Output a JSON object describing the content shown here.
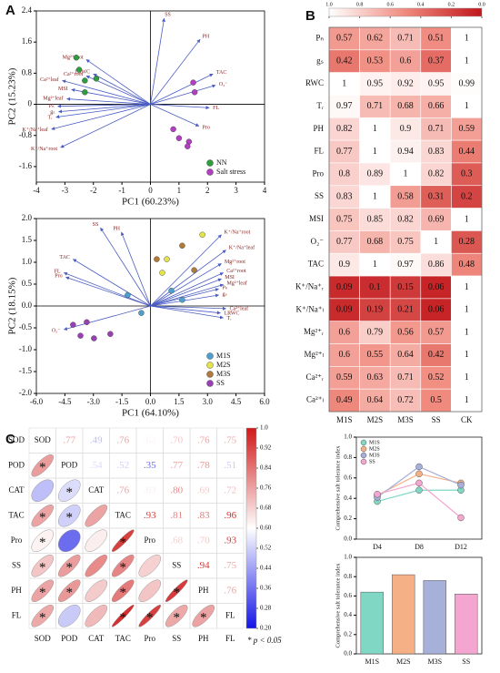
{
  "panel_labels": [
    "A",
    "B",
    "C"
  ],
  "chart_data": [
    {
      "type": "biplot",
      "xlabel": "PC1 (60.23%)",
      "ylabel": "PC2 (15.23%)",
      "xlim": [
        -4,
        4
      ],
      "ylim": [
        -2,
        2.4
      ],
      "xticks": [
        -4,
        -3,
        -2,
        -1,
        0,
        1,
        2,
        3,
        4
      ],
      "yticks": [
        2.4,
        1.6,
        0.8,
        0,
        -0.8,
        -1.6
      ],
      "legend": "lower right",
      "series": [
        {
          "name": "NN",
          "color": "#2e9e3e",
          "x": [
            -2.6,
            -2.5,
            -2.3,
            -1.9,
            -2.3
          ],
          "y": [
            1.2,
            0.89,
            0.61,
            0.66,
            0.31
          ]
        },
        {
          "name": "Salt stress",
          "color": "#b040c0",
          "x": [
            1.5,
            1.55,
            0.8,
            1.0,
            1.35,
            1.3
          ],
          "y": [
            0.56,
            0.31,
            -0.64,
            -0.87,
            -0.96,
            -1.08
          ]
        }
      ],
      "loadings": {
        "color": "#4a5cc4",
        "names": [
          "SS",
          "PH",
          "TAC",
          "O₂⁻",
          "FL",
          "Pro",
          "Mg²⁺root",
          "Ca²⁺root",
          "LRWC",
          "Ca²⁺leaf",
          "MSI",
          "Mg²⁺leaf",
          "Pₙ",
          "gₛ",
          "Tᵣ",
          "K⁺/Na⁺leaf",
          "K⁺/Na⁺root"
        ],
        "x": [
          0.48,
          1.74,
          2.19,
          2.28,
          2.06,
          1.7,
          -2.25,
          -2.25,
          -2.0,
          -3.09,
          -2.77,
          -2.93,
          -3.25,
          -3.22,
          -3.31,
          -3.47,
          -3.15
        ],
        "y": [
          2.21,
          1.67,
          0.78,
          0.49,
          -0.09,
          -0.56,
          1.15,
          0.73,
          0.78,
          0.61,
          0.38,
          0.14,
          -0.05,
          -0.19,
          -0.33,
          -0.64,
          -1.11
        ]
      }
    },
    {
      "type": "biplot",
      "xlabel": "PC1 (64.10%)",
      "ylabel": "PC2 (18.15%)",
      "xlim": [
        -6,
        6
      ],
      "ylim": [
        -2,
        2
      ],
      "xticks": [
        {
          "value": -6,
          "label": "-6.0"
        },
        -4.5,
        {
          "value": -3,
          "label": "-3.0"
        },
        -1.5,
        {
          "value": 0,
          "label": "0.0"
        },
        1.5,
        {
          "value": 3,
          "label": "3.0"
        },
        4.5,
        {
          "value": 6,
          "label": "6.0"
        }
      ],
      "yticks": [
        {
          "value": 2,
          "label": "2.0"
        },
        1.5,
        {
          "value": 1,
          "label": "1.0"
        },
        0.5,
        {
          "value": 0,
          "label": "0.0"
        },
        -0.5,
        {
          "value": -1,
          "label": "-1.0"
        },
        -1.5,
        {
          "value": -2,
          "label": "-2.0"
        }
      ],
      "legend": "lower right",
      "series": [
        {
          "name": "M1S",
          "color": "#4f9fcc",
          "x": [
            -0.48,
            1.1,
            -1.2,
            1.67
          ],
          "y": [
            -0.16,
            0.35,
            0.25,
            0.14
          ]
        },
        {
          "name": "M2S",
          "color": "#e4e44a",
          "x": [
            0.62,
            0.86,
            2.73
          ],
          "y": [
            0.76,
            1.07,
            1.63
          ]
        },
        {
          "name": "M3S",
          "color": "#b07a3a",
          "x": [
            0.33,
            1.67,
            2.3
          ],
          "y": [
            1.07,
            1.38,
            0.82
          ]
        },
        {
          "name": "SS",
          "color": "#9b3fb5",
          "x": [
            -4.07,
            -3.35,
            -2.97,
            -2.11,
            -3.68
          ],
          "y": [
            -0.43,
            -0.37,
            -0.74,
            -0.64,
            -0.68
          ]
        }
      ],
      "loadings": {
        "color": "#4a5cc4",
        "names": [
          "SS",
          "PH",
          "TAC",
          "FL",
          "Pro",
          "O₂⁻",
          "K⁺/Na⁺root",
          "K⁺/Na⁺leaf",
          "Mg²⁺root",
          "Ca²⁺root",
          "MSI",
          "Mg²⁺leaf",
          "Pₙ",
          "gₛ",
          "LRWC",
          "Ca²⁺leaf",
          "Tᵣ"
        ],
        "x": [
          -2.63,
          -1.53,
          -4.07,
          -4.55,
          -4.45,
          -4.55,
          3.73,
          3.97,
          3.73,
          3.83,
          3.73,
          3.83,
          3.59,
          3.59,
          3.68,
          3.97,
          3.83
        ],
        "y": [
          1.79,
          1.69,
          1.07,
          0.76,
          0.66,
          -0.54,
          1.63,
          1.28,
          0.97,
          0.76,
          0.62,
          0.49,
          0.39,
          0.25,
          -0.16,
          -0.06,
          -0.27
        ]
      }
    },
    {
      "type": "heatmap",
      "columns": [
        "M1S",
        "M2S",
        "M3S",
        "SS",
        "CK"
      ],
      "rows": [
        "Pₙ",
        "gₛ",
        "RWC",
        "Tᵣ",
        "PH",
        "FL",
        "Pro",
        "SS",
        "MSI",
        "O₂⁻",
        "TAC",
        "K⁺/Na⁺ᵣ",
        "K⁺/Na⁺ₗ",
        "Mg²⁺ᵣ",
        "Mg²⁺ₗ",
        "Ca²⁺ᵣ",
        "Ca²⁺ₗ"
      ],
      "values": [
        [
          0.57,
          0.62,
          0.71,
          0.51,
          1
        ],
        [
          0.42,
          0.53,
          0.6,
          0.37,
          1
        ],
        [
          1,
          0.95,
          0.92,
          0.95,
          0.99
        ],
        [
          0.97,
          0.71,
          0.68,
          0.66,
          1
        ],
        [
          0.82,
          1,
          0.9,
          0.71,
          0.59
        ],
        [
          0.77,
          1,
          0.94,
          0.83,
          0.44
        ],
        [
          0.8,
          0.89,
          1,
          0.82,
          0.3
        ],
        [
          0.83,
          1,
          0.58,
          0.31,
          0.2
        ],
        [
          0.75,
          0.85,
          0.82,
          0.69,
          1
        ],
        [
          0.77,
          0.68,
          0.75,
          1,
          0.28
        ],
        [
          0.9,
          1,
          0.97,
          0.86,
          0.48
        ],
        [
          0.09,
          0.1,
          0.15,
          0.06,
          1
        ],
        [
          0.09,
          0.19,
          0.21,
          0.06,
          1
        ],
        [
          0.6,
          0.79,
          0.56,
          0.57,
          1
        ],
        [
          0.6,
          0.55,
          0.64,
          0.42,
          1
        ],
        [
          0.59,
          0.63,
          0.71,
          0.52,
          1
        ],
        [
          0.49,
          0.64,
          0.72,
          0.5,
          1
        ]
      ],
      "clim": [
        1,
        0
      ],
      "cmap": [
        "#ffffff",
        "#f08a7e",
        "#c0161b"
      ],
      "cticks": [
        {
          "value": 1,
          "label": "1.0"
        },
        0.8,
        0.6,
        0.4,
        0.2,
        {
          "value": 0,
          "label": "0.0"
        }
      ]
    },
    {
      "type": "correlogram",
      "variables": [
        "SOD",
        "POD",
        "CAT",
        "TAC",
        "Pro",
        "SS",
        "PH",
        "FL"
      ],
      "values": [
        [
          null,
          0.77,
          0.49,
          0.76,
          0.62,
          0.7,
          0.76,
          0.75
        ],
        [
          null,
          null,
          0.54,
          0.52,
          0.35,
          0.77,
          0.78,
          0.51
        ],
        [
          null,
          null,
          null,
          0.76,
          0.63,
          0.8,
          0.69,
          0.72
        ],
        [
          null,
          null,
          null,
          null,
          0.93,
          0.81,
          0.83,
          0.96
        ],
        [
          null,
          null,
          null,
          null,
          null,
          0.68,
          0.7,
          0.93
        ],
        [
          null,
          null,
          null,
          null,
          null,
          null,
          0.94,
          0.75
        ],
        [
          null,
          null,
          null,
          null,
          null,
          null,
          null,
          0.76
        ],
        [
          null,
          null,
          null,
          null,
          null,
          null,
          null,
          null
        ]
      ],
      "value_labels": [
        [
          null,
          ".77",
          ".49",
          ".76",
          ".62",
          ".70",
          ".76",
          ".75"
        ],
        [
          null,
          null,
          ".54",
          ".52",
          ".35",
          ".77",
          ".78",
          ".51"
        ],
        [
          null,
          null,
          null,
          ".76",
          ".63",
          ".80",
          ".69",
          ".72"
        ],
        [
          null,
          null,
          null,
          null,
          ".93",
          ".81",
          ".83",
          ".96"
        ],
        [
          null,
          null,
          null,
          null,
          null,
          ".68",
          ".70",
          ".93"
        ],
        [
          null,
          null,
          null,
          null,
          null,
          null,
          ".94",
          ".75"
        ],
        [
          null,
          null,
          null,
          null,
          null,
          null,
          null,
          ".76"
        ],
        [
          null,
          null,
          null,
          null,
          null,
          null,
          null,
          null
        ]
      ],
      "significance": [
        [
          null,
          null,
          null,
          null,
          null,
          null,
          null,
          null
        ],
        [
          "*",
          null,
          null,
          null,
          null,
          null,
          null,
          null
        ],
        [
          null,
          "*",
          null,
          null,
          null,
          null,
          null,
          null
        ],
        [
          "*",
          "*",
          null,
          null,
          null,
          null,
          null,
          null
        ],
        [
          "*",
          null,
          null,
          "*",
          null,
          null,
          null,
          null
        ],
        [
          "*",
          "*",
          null,
          "*",
          null,
          null,
          null,
          null
        ],
        [
          "*",
          "*",
          null,
          "*",
          null,
          "*",
          null,
          null
        ],
        [
          "*",
          null,
          null,
          "*",
          "*",
          "*",
          "*",
          null
        ]
      ],
      "clim": [
        0.2,
        1
      ],
      "cmap": [
        "#1414e6",
        "#ffffff",
        "#d01818"
      ],
      "cticks": [
        {
          "value": 1,
          "label": "1.0"
        },
        0.92,
        0.84,
        0.76,
        0.68,
        {
          "value": 0.6,
          "label": "0.60"
        },
        0.52,
        0.44,
        0.36,
        0.28,
        {
          "value": 0.2,
          "label": "0.20"
        }
      ],
      "footnote": "* p < 0.05"
    },
    {
      "type": "line",
      "ylabel": "Comprehensive salt tolerance index",
      "categories": [
        "D4",
        "D8",
        "D12"
      ],
      "series": [
        {
          "name": "M1S",
          "color": "#7fd7c4",
          "values": [
            0.37,
            0.48,
            0.48
          ]
        },
        {
          "name": "M2S",
          "color": "#f6b086",
          "values": [
            0.43,
            0.64,
            0.55
          ]
        },
        {
          "name": "M3S",
          "color": "#a6b0d8",
          "values": [
            0.41,
            0.71,
            0.53
          ]
        },
        {
          "name": "SS",
          "color": "#f4a6d0",
          "values": [
            0.44,
            0.55,
            0.21
          ]
        }
      ],
      "ylim": [
        0,
        1
      ],
      "yticks": [
        {
          "value": 0,
          "label": "0.0"
        },
        0.2,
        0.4,
        0.6,
        0.8,
        {
          "value": 1,
          "label": "1.0"
        }
      ]
    },
    {
      "type": "bar",
      "ylabel": "Comprehensive salt tolerance index",
      "categories": [
        "M1S",
        "M2S",
        "M3S",
        "SS"
      ],
      "values": [
        0.64,
        0.82,
        0.76,
        0.62
      ],
      "colors": [
        "#7fd7c4",
        "#f6b086",
        "#a6b0d8",
        "#f4a6d0"
      ],
      "ylim": [
        0,
        1
      ],
      "yticks": [
        {
          "value": 0,
          "label": "0.0"
        },
        0.2,
        0.4,
        0.6,
        0.8,
        {
          "value": 1,
          "label": "1.0"
        }
      ]
    }
  ]
}
